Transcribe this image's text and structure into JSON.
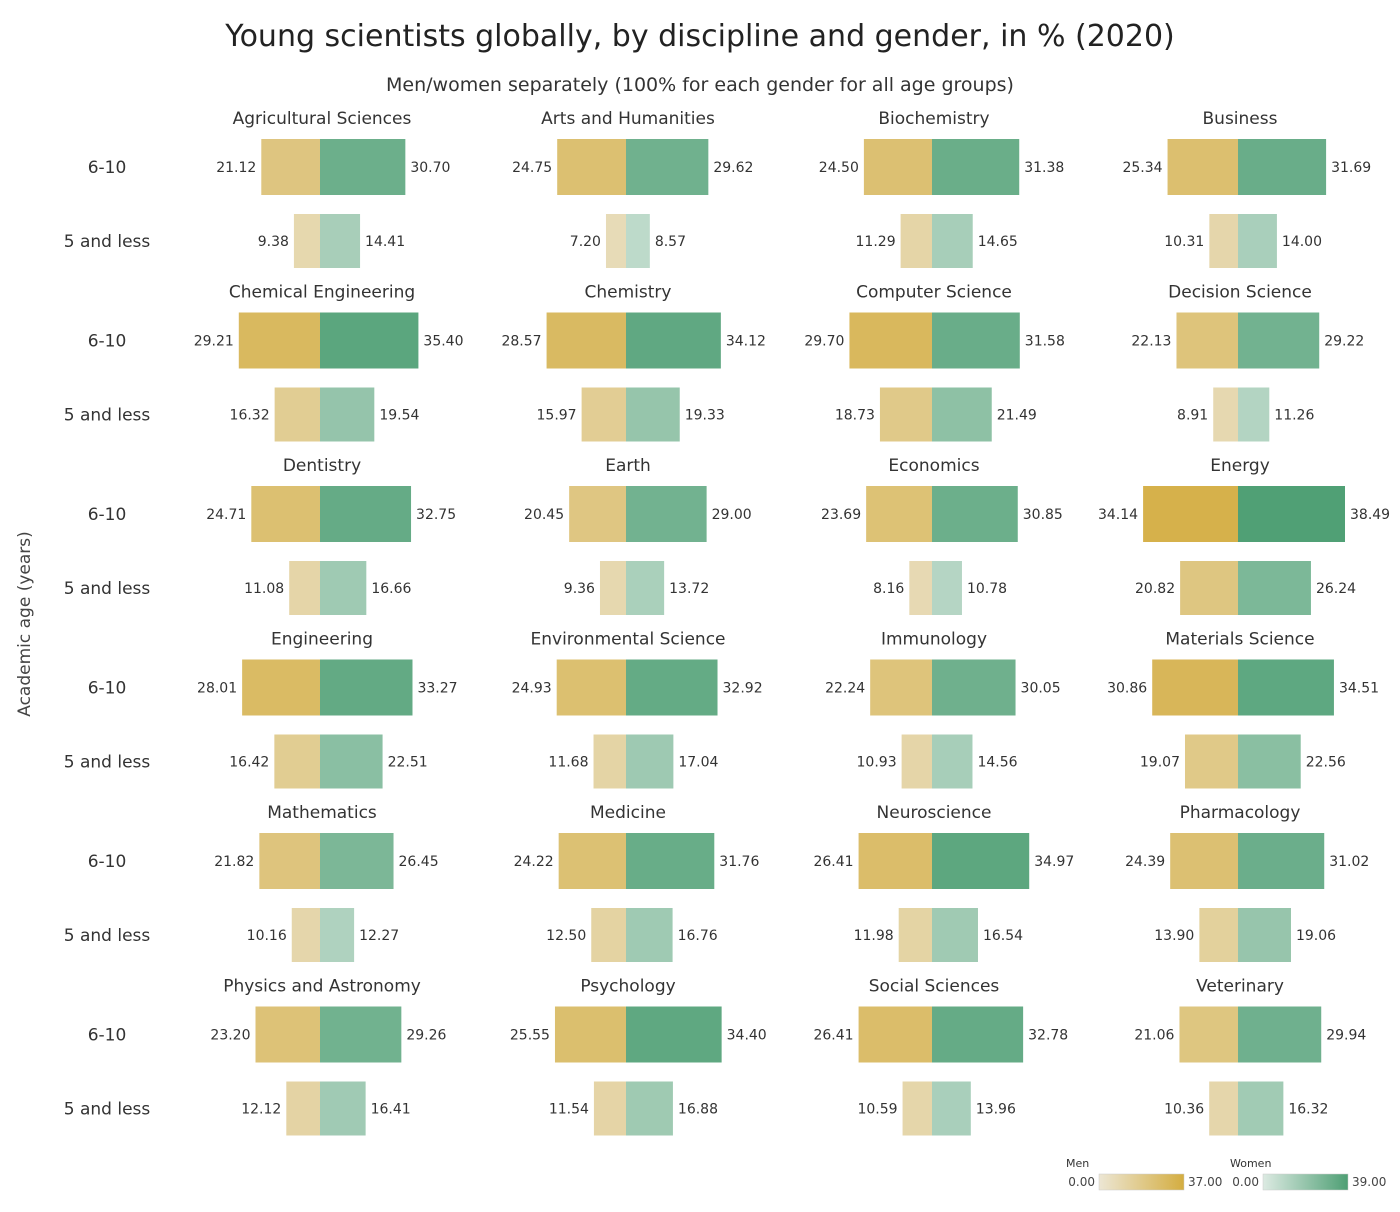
{
  "chart_data": {
    "type": "bar",
    "title": "Young scientists globally, by discipline and gender, in % (2020)",
    "subtitle": "Men/women separately (100% for each gender for all age groups)",
    "ylabel": "Academic age (years)",
    "age_groups": [
      "6-10",
      "5 and less"
    ],
    "series_names": [
      "Men",
      "Women"
    ],
    "panels": [
      {
        "name": "Agricultural Sciences",
        "men": [
          21.12,
          9.38
        ],
        "women": [
          30.7,
          14.41
        ]
      },
      {
        "name": "Arts and Humanities",
        "men": [
          24.75,
          7.2
        ],
        "women": [
          29.62,
          8.57
        ]
      },
      {
        "name": "Biochemistry",
        "men": [
          24.5,
          11.29
        ],
        "women": [
          31.38,
          14.65
        ]
      },
      {
        "name": "Business",
        "men": [
          25.34,
          10.31
        ],
        "women": [
          31.69,
          14.0
        ]
      },
      {
        "name": "Chemical Engineering",
        "men": [
          29.21,
          16.32
        ],
        "women": [
          35.4,
          19.54
        ]
      },
      {
        "name": "Chemistry",
        "men": [
          28.57,
          15.97
        ],
        "women": [
          34.12,
          19.33
        ]
      },
      {
        "name": "Computer Science",
        "men": [
          29.7,
          18.73
        ],
        "women": [
          31.58,
          21.49
        ]
      },
      {
        "name": "Decision Science",
        "men": [
          22.13,
          8.91
        ],
        "women": [
          29.22,
          11.26
        ]
      },
      {
        "name": "Dentistry",
        "men": [
          24.71,
          11.08
        ],
        "women": [
          32.75,
          16.66
        ]
      },
      {
        "name": "Earth",
        "men": [
          20.45,
          9.36
        ],
        "women": [
          29.0,
          13.72
        ]
      },
      {
        "name": "Economics",
        "men": [
          23.69,
          8.16
        ],
        "women": [
          30.85,
          10.78
        ]
      },
      {
        "name": "Energy",
        "men": [
          34.14,
          20.82
        ],
        "women": [
          38.49,
          26.24
        ]
      },
      {
        "name": "Engineering",
        "men": [
          28.01,
          16.42
        ],
        "women": [
          33.27,
          22.51
        ]
      },
      {
        "name": "Environmental Science",
        "men": [
          24.93,
          11.68
        ],
        "women": [
          32.92,
          17.04
        ]
      },
      {
        "name": "Immunology",
        "men": [
          22.24,
          10.93
        ],
        "women": [
          30.05,
          14.56
        ]
      },
      {
        "name": "Materials Science",
        "men": [
          30.86,
          19.07
        ],
        "women": [
          34.51,
          22.56
        ]
      },
      {
        "name": "Mathematics",
        "men": [
          21.82,
          10.16
        ],
        "women": [
          26.45,
          12.27
        ]
      },
      {
        "name": "Medicine",
        "men": [
          24.22,
          12.5
        ],
        "women": [
          31.76,
          16.76
        ]
      },
      {
        "name": "Neuroscience",
        "men": [
          26.41,
          11.98
        ],
        "women": [
          34.97,
          16.54
        ]
      },
      {
        "name": "Pharmacology",
        "men": [
          24.39,
          13.9
        ],
        "women": [
          31.02,
          19.06
        ]
      },
      {
        "name": "Physics and Astronomy",
        "men": [
          23.2,
          12.12
        ],
        "women": [
          29.26,
          16.41
        ]
      },
      {
        "name": "Psychology",
        "men": [
          25.55,
          11.54
        ],
        "women": [
          34.4,
          16.88
        ]
      },
      {
        "name": "Social Sciences",
        "men": [
          26.41,
          10.59
        ],
        "women": [
          32.78,
          13.96
        ]
      },
      {
        "name": "Veterinary",
        "men": [
          21.06,
          10.36
        ],
        "women": [
          29.94,
          16.32
        ]
      }
    ],
    "color_scale": {
      "men": {
        "label": "Men",
        "min": 0.0,
        "max": 37.0,
        "min_label": "0.00",
        "max_label": "37.00",
        "color_low": "#ece6d4",
        "color_high": "#d4ad40"
      },
      "women": {
        "label": "Women",
        "min": 0.0,
        "max": 39.0,
        "min_label": "0.00",
        "max_label": "39.00",
        "color_low": "#dceae2",
        "color_high": "#4e9f74"
      }
    }
  }
}
